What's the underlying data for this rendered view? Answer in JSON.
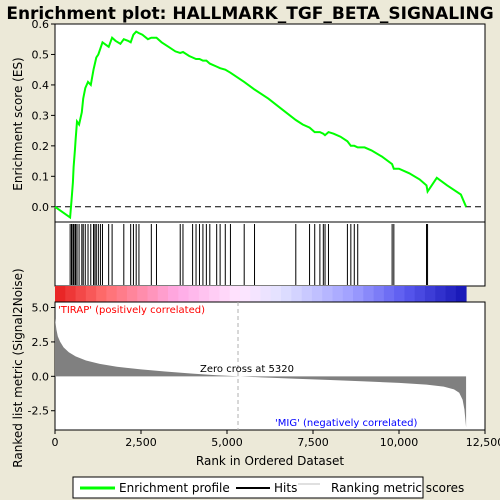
{
  "chart_data": {
    "type": "line",
    "title": "Enrichment plot: HALLMARK_TGF_BETA_SIGNALING",
    "es_panel": {
      "ylabel": "Enrichment score (ES)",
      "ylim": [
        -0.05,
        0.6
      ],
      "yticks": [
        "0.0",
        "0.1",
        "0.2",
        "0.3",
        "0.4",
        "0.5",
        "0.6"
      ],
      "ytick_values": [
        0.0,
        0.1,
        0.2,
        0.3,
        0.4,
        0.5,
        0.6
      ],
      "line_color": "#00ff00",
      "series": [
        {
          "name": "Enrichment profile",
          "x": [
            0,
            440,
            480,
            520,
            540,
            580,
            600,
            640,
            700,
            780,
            820,
            880,
            960,
            1040,
            1120,
            1160,
            1200,
            1260,
            1320,
            1380,
            1500,
            1560,
            1660,
            1760,
            1900,
            2000,
            2120,
            2200,
            2280,
            2360,
            2440,
            2540,
            2700,
            2800,
            2950,
            3100,
            3300,
            3500,
            3640,
            3720,
            3900,
            4000,
            4100,
            4200,
            4300,
            4400,
            4500,
            4700,
            4800,
            4950,
            5100,
            5300,
            5500,
            5800,
            6200,
            6600,
            7000,
            7200,
            7400,
            7550,
            7700,
            7800,
            7850,
            7950,
            8100,
            8300,
            8500,
            8600,
            8700,
            8800,
            9000,
            9200,
            9500,
            9800,
            9850,
            10000,
            10300,
            10600,
            10800,
            10830,
            11100,
            11400,
            11800,
            11950
          ],
          "y": [
            0.0,
            -0.035,
            0.02,
            0.08,
            0.13,
            0.19,
            0.22,
            0.28,
            0.27,
            0.31,
            0.355,
            0.39,
            0.41,
            0.4,
            0.45,
            0.47,
            0.49,
            0.5,
            0.52,
            0.54,
            0.53,
            0.525,
            0.555,
            0.545,
            0.535,
            0.55,
            0.545,
            0.54,
            0.565,
            0.575,
            0.57,
            0.565,
            0.55,
            0.555,
            0.555,
            0.54,
            0.525,
            0.51,
            0.505,
            0.508,
            0.495,
            0.49,
            0.485,
            0.485,
            0.48,
            0.48,
            0.47,
            0.46,
            0.455,
            0.45,
            0.44,
            0.425,
            0.41,
            0.385,
            0.355,
            0.32,
            0.285,
            0.27,
            0.26,
            0.245,
            0.245,
            0.24,
            0.235,
            0.245,
            0.24,
            0.23,
            0.215,
            0.2,
            0.2,
            0.195,
            0.195,
            0.185,
            0.165,
            0.14,
            0.125,
            0.125,
            0.11,
            0.09,
            0.07,
            0.05,
            0.095,
            0.07,
            0.04,
            0.0
          ]
        }
      ]
    },
    "hits": [
      440,
      480,
      520,
      540,
      580,
      600,
      640,
      700,
      780,
      820,
      880,
      960,
      1040,
      1120,
      1160,
      1200,
      1260,
      1320,
      1380,
      1560,
      1660,
      2000,
      2200,
      2280,
      2360,
      2440,
      2800,
      2950,
      3640,
      3720,
      4000,
      4100,
      4200,
      4300,
      4400,
      4500,
      4700,
      4800,
      4950,
      5100,
      5500,
      5800,
      7000,
      7400,
      7550,
      7700,
      7800,
      7850,
      7950,
      8500,
      8600,
      8700,
      8800,
      9800,
      9850,
      10800,
      10830
    ],
    "rank_panel": {
      "ylabel": "Ranked list metric (Signal2Noise)",
      "ylim": [
        -3.9,
        5.4
      ],
      "yticks": [
        "5.0",
        "2.5",
        "0.0",
        "-2.5"
      ],
      "ytick_values": [
        5.0,
        2.5,
        0.0,
        -2.5
      ],
      "x": [
        0,
        40,
        80,
        150,
        250,
        400,
        600,
        900,
        1300,
        1800,
        2500,
        3200,
        4000,
        4700,
        5320,
        6000,
        7000,
        8000,
        9000,
        10000,
        10800,
        11300,
        11600,
        11750,
        11850,
        11900,
        11950
      ],
      "y": [
        4.2,
        3.4,
        2.9,
        2.5,
        2.1,
        1.75,
        1.45,
        1.15,
        0.9,
        0.7,
        0.5,
        0.35,
        0.2,
        0.08,
        0.0,
        -0.08,
        -0.17,
        -0.27,
        -0.37,
        -0.48,
        -0.6,
        -0.75,
        -0.95,
        -1.2,
        -1.7,
        -2.4,
        -3.7
      ],
      "fill_color": "#808080",
      "zero_cross_label": "Zero cross at 5320",
      "zero_cross": 5320,
      "pos_label": "'TIRAP' (positively correlated)",
      "neg_label": "'MIG' (negatively correlated)",
      "pos_color": "#ff0000",
      "neg_color": "#0000ff"
    },
    "x_axis": {
      "label": "Rank in Ordered Dataset",
      "xlim": [
        0,
        12500
      ],
      "ticks": [
        "0",
        "2,500",
        "5,000",
        "7,500",
        "10,000",
        "12,500"
      ],
      "tick_values": [
        0,
        2500,
        5000,
        7500,
        10000,
        12500
      ],
      "n": 11950
    },
    "legend": {
      "placement": "bottom",
      "items": [
        {
          "label": "Enrichment profile",
          "color": "#00ff00"
        },
        {
          "label": "Hits",
          "color": "#000000"
        },
        {
          "label": "Ranking metric scores",
          "color": "#c0c0c0"
        }
      ]
    }
  }
}
